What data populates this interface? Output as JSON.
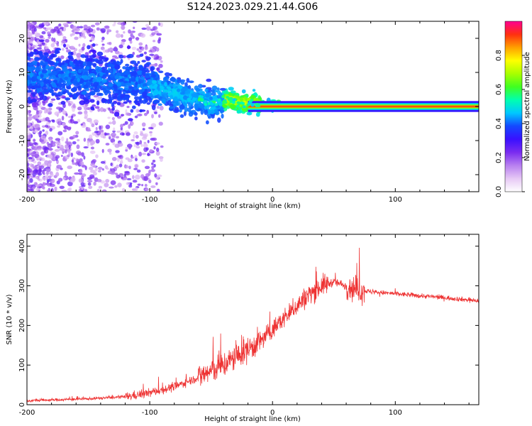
{
  "title": "S124.2023.029.21.44.G06",
  "colors": {
    "snr_line": "#ee3333",
    "colormap": [
      "#ffffff",
      "#e6c8f5",
      "#b880f0",
      "#7a2cf0",
      "#3a10ff",
      "#1448ff",
      "#00c8ff",
      "#00ffb0",
      "#40ff20",
      "#a8ff00",
      "#ffff00",
      "#ffa000",
      "#ff3010",
      "#ff0090"
    ]
  },
  "chart_data": [
    {
      "type": "heatmap",
      "name": "spectrogram",
      "xlabel": "Height of straight line (km)",
      "ylabel": "Frequency (Hz)",
      "xlim": [
        -200,
        168
      ],
      "ylim": [
        -25,
        25
      ],
      "xticks": [
        "-200",
        "-100",
        "0",
        "100"
      ],
      "xtick_values": [
        -200,
        -100,
        0,
        100
      ],
      "yticks": [
        "20",
        "10",
        "0",
        "-10",
        "-20"
      ],
      "ytick_values": [
        20,
        10,
        0,
        -10,
        -20
      ],
      "colorbar": {
        "label": "Normalized spectral amplitude",
        "range": [
          0,
          1
        ],
        "ticks": [
          "0.0",
          "0.2",
          "0.4",
          "0.6",
          "0.8"
        ],
        "tick_values": [
          0,
          0.2,
          0.4,
          0.6,
          0.8
        ]
      },
      "ridge": {
        "description_values": "dominant frequency vs height",
        "x": [
          -200,
          -170,
          -150,
          -130,
          -110,
          -90,
          -70,
          -50,
          -35,
          -25,
          -15,
          -5,
          5,
          20,
          60,
          100,
          168
        ],
        "frequency": [
          9,
          9,
          8,
          8,
          7,
          5,
          3,
          1,
          2,
          1,
          1,
          0,
          0.5,
          0,
          0,
          0,
          0
        ]
      }
    },
    {
      "type": "line",
      "name": "snr",
      "xlabel": "Height of straight line (km)",
      "ylabel": "SNR (10 * v/v)",
      "xlim": [
        -200,
        168
      ],
      "ylim": [
        0,
        430
      ],
      "xticks": [
        "-200",
        "-100",
        "0",
        "100"
      ],
      "xtick_values": [
        -200,
        -100,
        0,
        100
      ],
      "yticks": [
        "400",
        "300",
        "200",
        "100",
        "0"
      ],
      "ytick_values": [
        400,
        300,
        200,
        100,
        0
      ],
      "envelope": {
        "x": [
          -200,
          -150,
          -120,
          -100,
          -80,
          -60,
          -40,
          -20,
          -10,
          0,
          10,
          20,
          30,
          40,
          50,
          60,
          70,
          80,
          100,
          120,
          140,
          168
        ],
        "y": [
          10,
          15,
          20,
          30,
          45,
          70,
          100,
          140,
          160,
          190,
          220,
          250,
          280,
          300,
          310,
          300,
          290,
          285,
          280,
          275,
          270,
          262
        ]
      }
    }
  ]
}
